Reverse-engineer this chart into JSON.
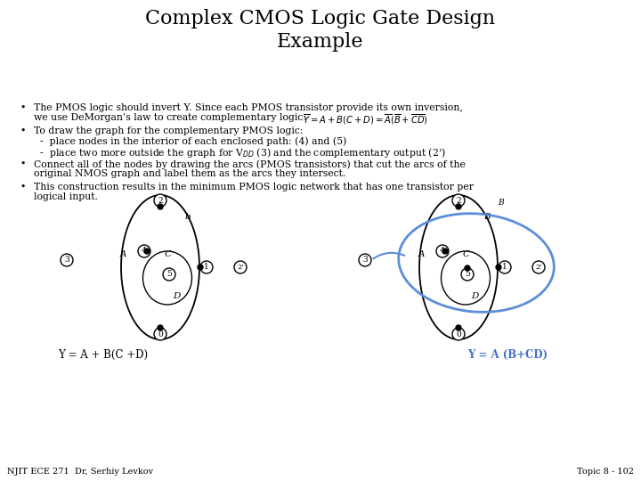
{
  "title": "Complex CMOS Logic Gate Design\nExample",
  "title_fontsize": 16,
  "bg_color": "#ffffff",
  "text_color": "#000000",
  "bullet_lines": [
    [
      "The PMOS logic should invert Y. Since each PMOS transistor provide its own inversion,",
      "we use DeMorgan’s law to create complementary logic:"
    ],
    [
      "To draw the graph for the complementary PMOS logic:",
      "  -  place nodes in the interior of each enclosed path: (4) and (5)",
      "  -  place two more outside the graph for V$_{DD}$ (3) and the complementary output (2’)"
    ],
    [
      "Connect all of the nodes by drawing the arcs (PMOS transistors) that cut the arcs of the",
      "original NMOS graph and label them as the arcs they intersect."
    ],
    [
      "This construction results in the minimum PMOS logic network that has one transistor per",
      "logical input."
    ]
  ],
  "label_left": "Y = A + B(C +D)",
  "label_right": "Y = A (B+CD)",
  "label_right_color": "#4472c4",
  "footer_left": "NJIT ECE 271  Dr, Serhiy Levkov",
  "footer_right": "Topic 8 - 102",
  "font_family": "serif",
  "text_fs": 7.8,
  "node_r": 7,
  "dot_r": 3
}
